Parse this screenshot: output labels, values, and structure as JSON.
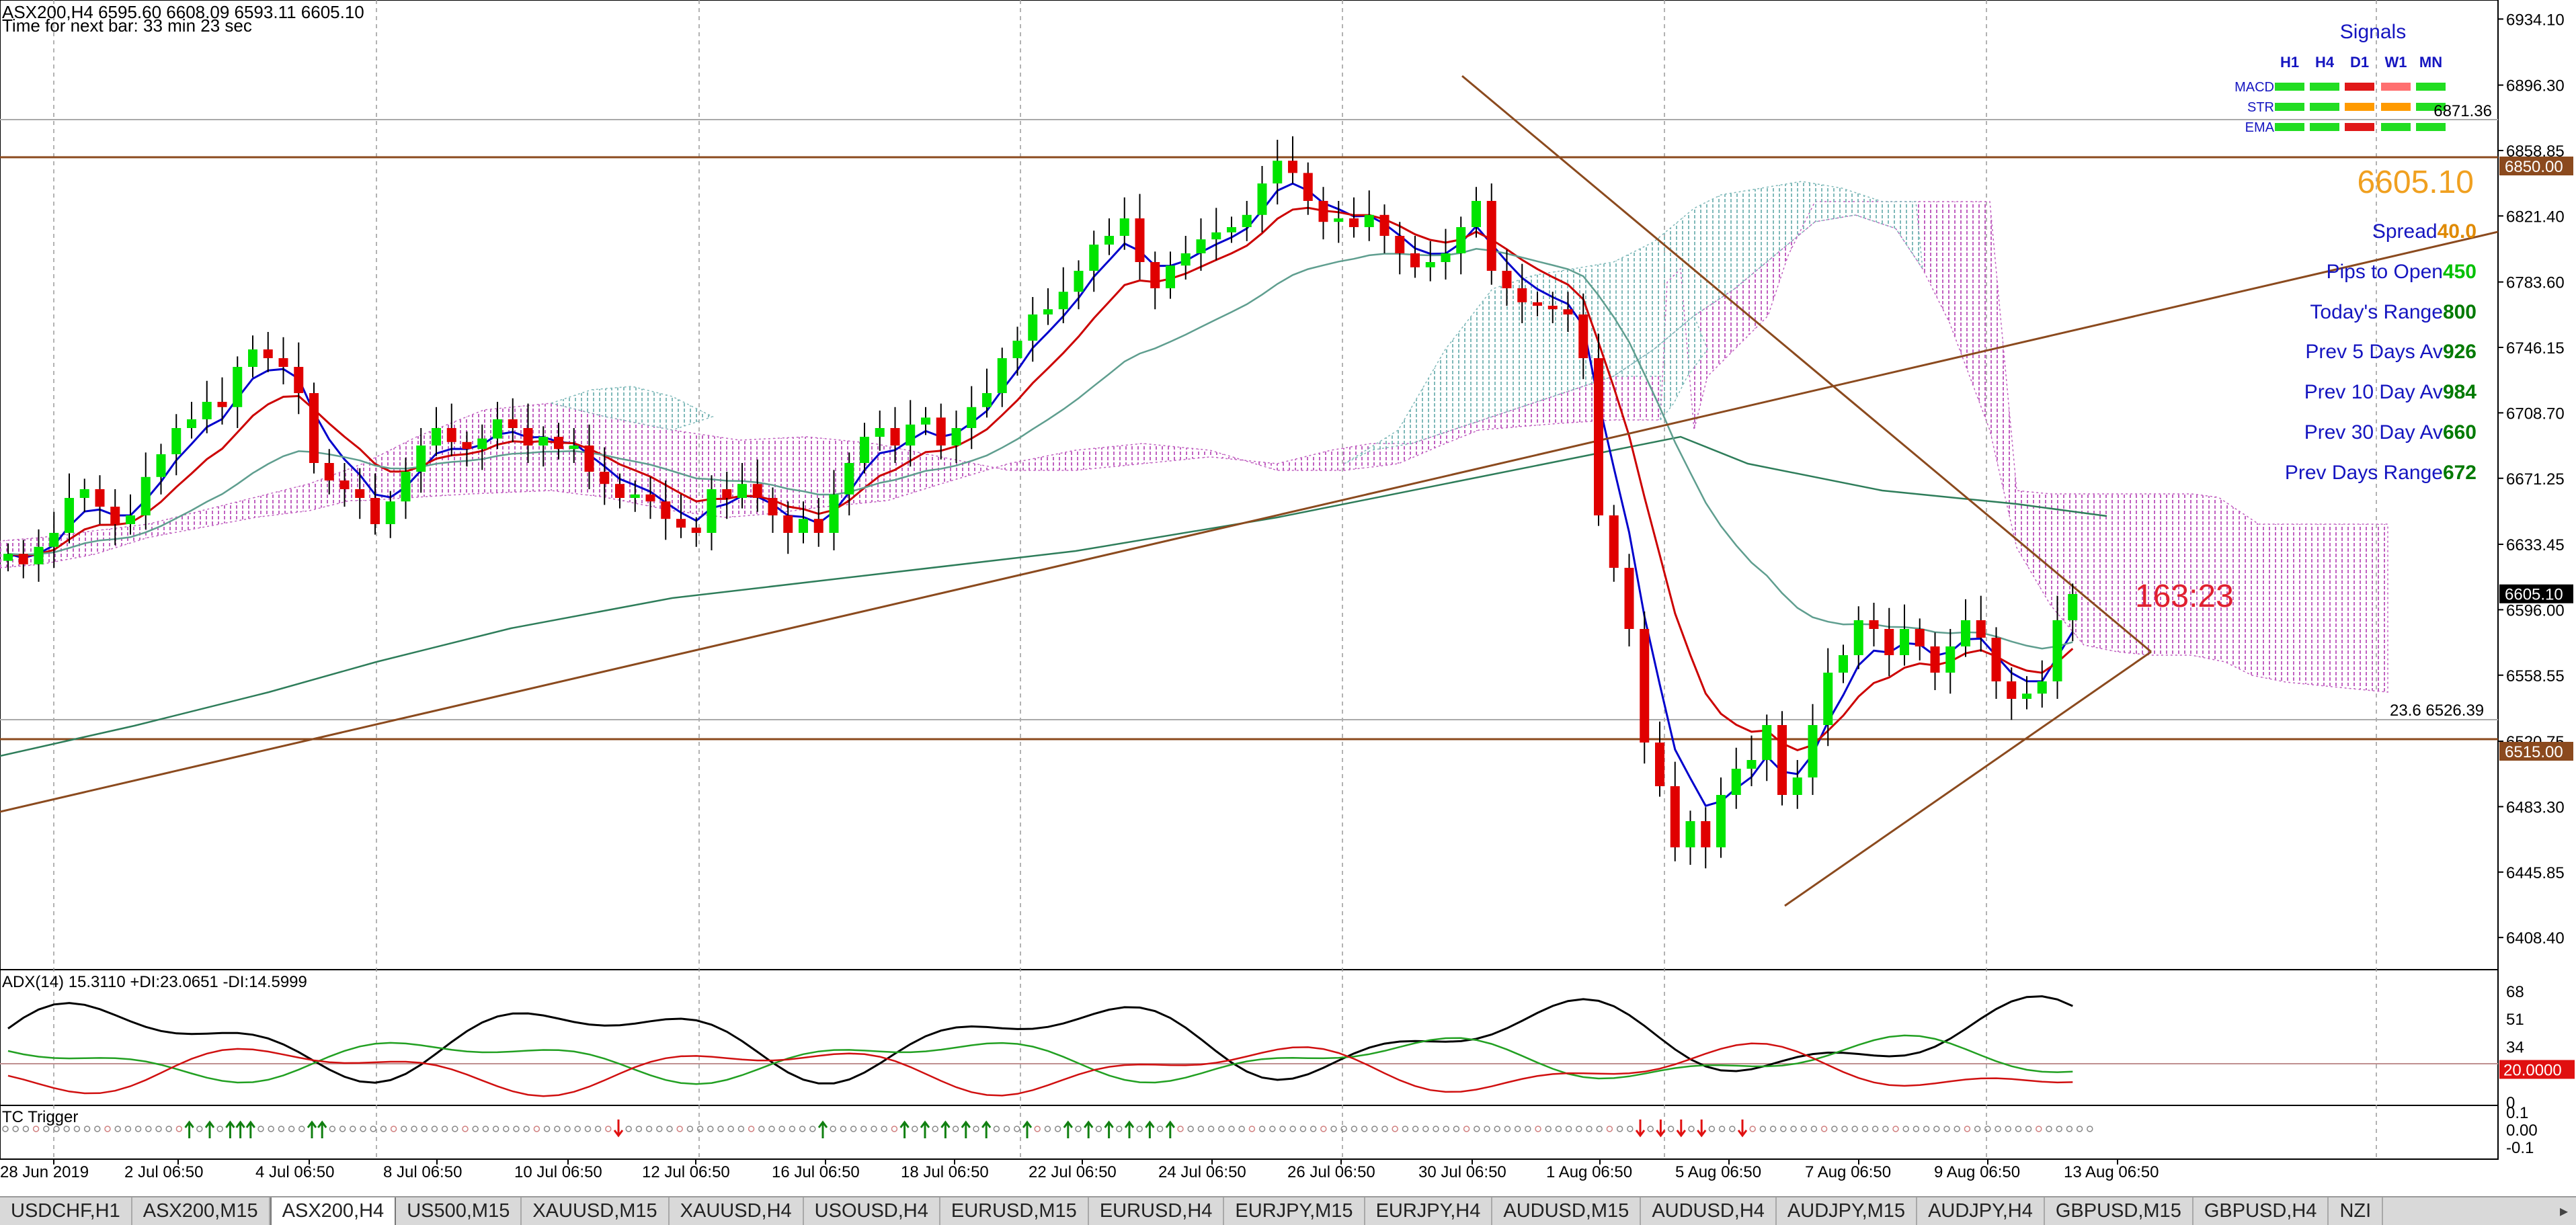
{
  "header": {
    "title_line": "ASX200,H4  6595.60 6608.09 6593.11 6605.10",
    "timer_line": "Time for next bar: 33 min 23 sec"
  },
  "colors": {
    "bull": "#00e400",
    "bear": "#e00000",
    "ema_fast": "#0000cc",
    "ema_slow": "#cc0000",
    "ema_mid": "#5f9e8f",
    "ema_long": "#2e7d5a",
    "trend": "#8b4a1e",
    "hline": "#8b4a1e",
    "kumo_bull": "#7fb9b9",
    "kumo_bear": "#c060c0",
    "adx": "#000000",
    "di_plus": "#22a022",
    "di_minus": "#d01010"
  },
  "price_axis": {
    "ticks": [
      "6934.10",
      "6896.30",
      "6858.85",
      "6821.40",
      "6783.60",
      "6746.15",
      "6708.70",
      "6671.25",
      "6633.45",
      "6596.00",
      "6558.55",
      "6520.75",
      "6483.30",
      "6445.85",
      "6408.40"
    ],
    "tags": [
      {
        "label": "6850.00",
        "price": 6850.0,
        "style": "brown"
      },
      {
        "label": "6605.10",
        "price": 6605.1,
        "style": "current"
      },
      {
        "label": "6515.00",
        "price": 6515.0,
        "style": "brown"
      }
    ]
  },
  "time_axis": [
    "28 Jun 2019",
    "2 Jul 06:50",
    "4 Jul 06:50",
    "8 Jul 06:50",
    "10 Jul 06:50",
    "12 Jul 06:50",
    "16 Jul 06:50",
    "18 Jul 06:50",
    "22 Jul 06:50",
    "24 Jul 06:50",
    "26 Jul 06:50",
    "30 Jul 06:50",
    "1 Aug 06:50",
    "5 Aug 06:50",
    "7 Aug 06:50",
    "9 Aug 06:50",
    "13 Aug 06:50"
  ],
  "signals": {
    "title": "Signals",
    "timeframes": [
      "H1",
      "H4",
      "D1",
      "W1",
      "MN"
    ],
    "rows": [
      {
        "label": "MACD",
        "cells": [
          "green",
          "green",
          "red",
          "salmon",
          "green"
        ]
      },
      {
        "label": "STR",
        "cells": [
          "green",
          "green",
          "orange",
          "orange",
          "green"
        ]
      },
      {
        "label": "EMA",
        "cells": [
          "green",
          "green",
          "red",
          "green",
          "green"
        ]
      }
    ],
    "overlay_text": "6871.36"
  },
  "stats": {
    "price": "6605.10",
    "rows": [
      {
        "label": "Spread",
        "value": "40.0",
        "value_color": "#e08a00"
      },
      {
        "label": "Pips to Open",
        "value": "450",
        "value_color": "#00c000"
      },
      {
        "label": "Today's Range",
        "value": "800",
        "value_color": "#007a00"
      },
      {
        "label": "Prev 5 Days Av",
        "value": "926",
        "value_color": "#007a00"
      },
      {
        "label": "Prev 10 Day Av",
        "value": "984",
        "value_color": "#007a00"
      },
      {
        "label": "Prev 30 Day Av",
        "value": "660",
        "value_color": "#007a00"
      },
      {
        "label": "Prev Days Range",
        "value": "672",
        "value_color": "#007a00"
      }
    ]
  },
  "countdown": "163:23",
  "fib_label": "23.6   6526.39",
  "adx_panel": {
    "label": "ADX(14) 15.3110 +DI:23.0651 -DI:14.5999",
    "ticks": [
      "68",
      "51",
      "34",
      "20.0000",
      "0"
    ]
  },
  "tc_panel": {
    "label": "TC Trigger",
    "ticks": [
      "0.1",
      "0.00",
      "-0.1"
    ]
  },
  "tabs": [
    {
      "label": "USDCHF,H1",
      "active": false
    },
    {
      "label": "ASX200,M15",
      "active": false
    },
    {
      "label": "ASX200,H4",
      "active": true
    },
    {
      "label": "US500,M15",
      "active": false
    },
    {
      "label": "XAUUSD,M15",
      "active": false
    },
    {
      "label": "XAUUSD,H4",
      "active": false
    },
    {
      "label": "USOUSD,H4",
      "active": false
    },
    {
      "label": "EURUSD,M15",
      "active": false
    },
    {
      "label": "EURUSD,H4",
      "active": false
    },
    {
      "label": "EURJPY,M15",
      "active": false
    },
    {
      "label": "EURJPY,H4",
      "active": false
    },
    {
      "label": "AUDUSD,M15",
      "active": false
    },
    {
      "label": "AUDUSD,H4",
      "active": false
    },
    {
      "label": "AUDJPY,M15",
      "active": false
    },
    {
      "label": "AUDJPY,H4",
      "active": false
    },
    {
      "label": "GBPUSD,M15",
      "active": false
    },
    {
      "label": "GBPUSD,H4",
      "active": false
    },
    {
      "label": "NZI",
      "active": false
    }
  ],
  "tab_scroll_icon": "triangle-right-icon",
  "chart_data": {
    "type": "candlestick",
    "symbol": "ASX200",
    "timeframe": "H4",
    "ohlc_last": {
      "open": 6595.6,
      "high": 6608.09,
      "low": 6593.11,
      "close": 6605.1
    },
    "ylim": [
      6390,
      6945
    ],
    "closes": [
      6628,
      6622,
      6632,
      6640,
      6660,
      6665,
      6655,
      6645,
      6650,
      6672,
      6685,
      6700,
      6705,
      6715,
      6712,
      6735,
      6745,
      6740,
      6735,
      6720,
      6680,
      6670,
      6665,
      6660,
      6645,
      6658,
      6675,
      6690,
      6700,
      6692,
      6688,
      6694,
      6705,
      6700,
      6690,
      6695,
      6688,
      6690,
      6675,
      6668,
      6660,
      6662,
      6658,
      6648,
      6643,
      6640,
      6665,
      6660,
      6668,
      6660,
      6650,
      6640,
      6648,
      6640,
      6662,
      6680,
      6695,
      6700,
      6690,
      6702,
      6706,
      6690,
      6700,
      6712,
      6720,
      6740,
      6750,
      6765,
      6768,
      6778,
      6790,
      6805,
      6810,
      6820,
      6795,
      6780,
      6793,
      6800,
      6808,
      6812,
      6815,
      6822,
      6840,
      6853,
      6846,
      6830,
      6818,
      6820,
      6815,
      6822,
      6810,
      6800,
      6792,
      6795,
      6800,
      6815,
      6830,
      6790,
      6780,
      6772,
      6770,
      6768,
      6765,
      6740,
      6650,
      6620,
      6585,
      6520,
      6495,
      6460,
      6475,
      6460,
      6490,
      6505,
      6510,
      6530,
      6490,
      6500,
      6530,
      6560,
      6570,
      6590,
      6585,
      6570,
      6585,
      6575,
      6560,
      6575,
      6590,
      6580,
      6555,
      6545,
      6548,
      6555,
      6590,
      6605
    ]
  }
}
